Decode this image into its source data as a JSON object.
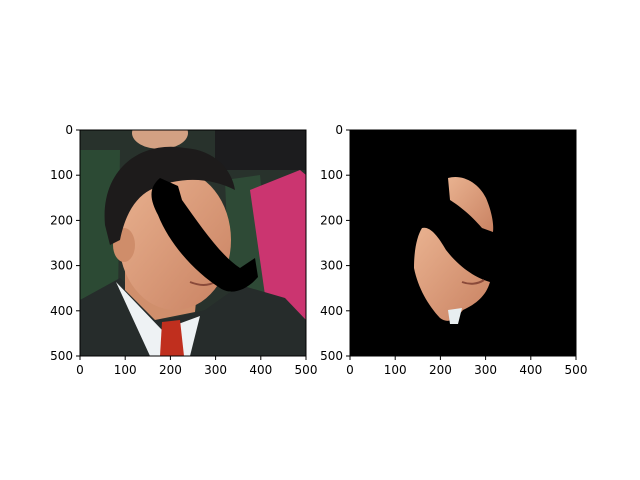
{
  "chart_data": [
    {
      "type": "image",
      "title": "",
      "xlabel": "",
      "ylabel": "",
      "xlim": [
        0,
        500
      ],
      "ylim": [
        500,
        0
      ],
      "xticks": [
        0,
        100,
        200,
        300,
        400,
        500
      ],
      "yticks": [
        0,
        100,
        200,
        300,
        400,
        500
      ],
      "x_tick_labels": [
        "0",
        "100",
        "200",
        "300",
        "400",
        "500"
      ],
      "y_tick_labels": [
        "0",
        "100",
        "200",
        "300",
        "400",
        "500"
      ],
      "image_content": "photo of a man in a dark suit and red tie with a black curved occlusion band drawn across his face",
      "background_colors": [
        "#2e3d2e",
        "#c9326e",
        "#27302d"
      ]
    },
    {
      "type": "image",
      "title": "",
      "xlabel": "",
      "ylabel": "",
      "xlim": [
        0,
        500
      ],
      "ylim": [
        500,
        0
      ],
      "xticks": [
        0,
        100,
        200,
        300,
        400,
        500
      ],
      "yticks": [
        0,
        100,
        200,
        300,
        400,
        500
      ],
      "x_tick_labels": [
        "0",
        "100",
        "200",
        "300",
        "400",
        "500"
      ],
      "y_tick_labels": [
        "0",
        "100",
        "200",
        "300",
        "400",
        "500"
      ],
      "image_content": "masked face region on black background, occlusion band remains black",
      "background_colors": [
        "#000000"
      ]
    }
  ]
}
